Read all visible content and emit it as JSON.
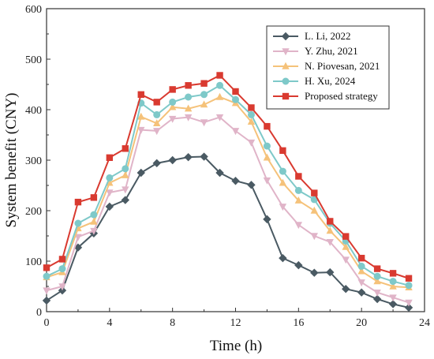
{
  "chart_data": {
    "type": "line",
    "xlabel": "Time (h)",
    "ylabel": "System benefit (CNY)",
    "xlim": [
      0,
      24
    ],
    "ylim": [
      0,
      600
    ],
    "xticks": [
      0,
      4,
      8,
      12,
      16,
      20,
      24
    ],
    "yticks": [
      0,
      100,
      200,
      300,
      400,
      500,
      600
    ],
    "grid": false,
    "legend_position": "top-right",
    "x": [
      0,
      1,
      2,
      3,
      4,
      5,
      6,
      7,
      8,
      9,
      10,
      11,
      12,
      13,
      14,
      15,
      16,
      17,
      18,
      19,
      20,
      21,
      22,
      23
    ],
    "series": [
      {
        "name": "L. Li, 2022",
        "color": "#4a5a63",
        "marker": "diamond",
        "values": [
          22,
          42,
          127,
          155,
          208,
          221,
          275,
          294,
          300,
          306,
          307,
          275,
          259,
          251,
          183,
          106,
          92,
          77,
          78,
          45,
          38,
          25,
          15,
          8
        ]
      },
      {
        "name": "Y. Zhu, 2021",
        "color": "#e0b4c8",
        "marker": "triangle-down",
        "values": [
          42,
          50,
          148,
          160,
          236,
          242,
          360,
          358,
          382,
          385,
          375,
          385,
          358,
          335,
          260,
          208,
          172,
          150,
          138,
          103,
          58,
          38,
          28,
          18
        ]
      },
      {
        "name": "N. Piovesan, 2021",
        "color": "#f5c27a",
        "marker": "triangle-up",
        "values": [
          68,
          78,
          165,
          178,
          255,
          270,
          386,
          373,
          405,
          402,
          410,
          425,
          413,
          376,
          305,
          255,
          220,
          200,
          160,
          128,
          80,
          60,
          50,
          48
        ]
      },
      {
        "name": "H. Xu, 2024",
        "color": "#7ec9c9",
        "marker": "circle",
        "values": [
          70,
          85,
          175,
          192,
          265,
          283,
          413,
          390,
          415,
          425,
          430,
          448,
          420,
          390,
          328,
          278,
          240,
          222,
          175,
          140,
          90,
          70,
          60,
          52
        ]
      },
      {
        "name": "Proposed strategy",
        "color": "#d93a30",
        "marker": "square",
        "values": [
          87,
          104,
          217,
          226,
          305,
          323,
          430,
          415,
          440,
          448,
          452,
          468,
          436,
          404,
          367,
          319,
          268,
          235,
          179,
          149,
          106,
          85,
          76,
          66
        ]
      }
    ]
  }
}
